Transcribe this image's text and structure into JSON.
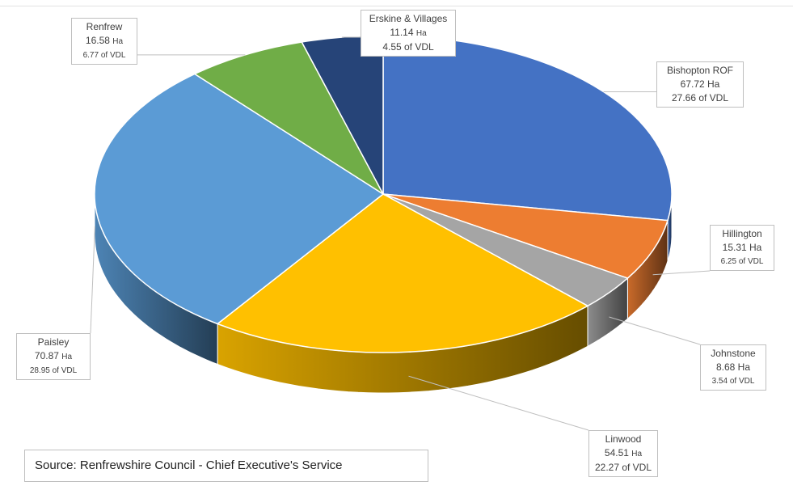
{
  "chart_data": {
    "type": "pie",
    "title": "",
    "style": "3d-exploded-pie",
    "slices": [
      {
        "name": "Bishopton ROF",
        "value": 67.72,
        "unit": "Ha",
        "share": "27.66 of VDL",
        "color": "#4472C4"
      },
      {
        "name": "Hillington",
        "value": 15.31,
        "unit": "Ha",
        "share": "6.25 of VDL",
        "color": "#ED7D31"
      },
      {
        "name": "Johnstone",
        "value": 8.68,
        "unit": "Ha",
        "share": "3.54 of VDL",
        "color": "#A5A5A5"
      },
      {
        "name": "Linwood",
        "value": 54.51,
        "unit": "Ha",
        "share": "22.27 of VDL",
        "color": "#FFC000"
      },
      {
        "name": "Paisley",
        "value": 70.87,
        "unit": "Ha",
        "share": "28.95 of VDL",
        "color": "#5B9BD5"
      },
      {
        "name": "Renfrew",
        "value": 16.58,
        "unit": "Ha",
        "share": "6.77 of VDL",
        "color": "#70AD47"
      },
      {
        "name": "Erskine & Villages",
        "value": 11.14,
        "unit": "Ha",
        "share": "4.55 of VDL",
        "color": "#264478"
      }
    ],
    "legend": "none",
    "annotation": "Source: Renfrewshire Council - Chief Executive's Service"
  }
}
